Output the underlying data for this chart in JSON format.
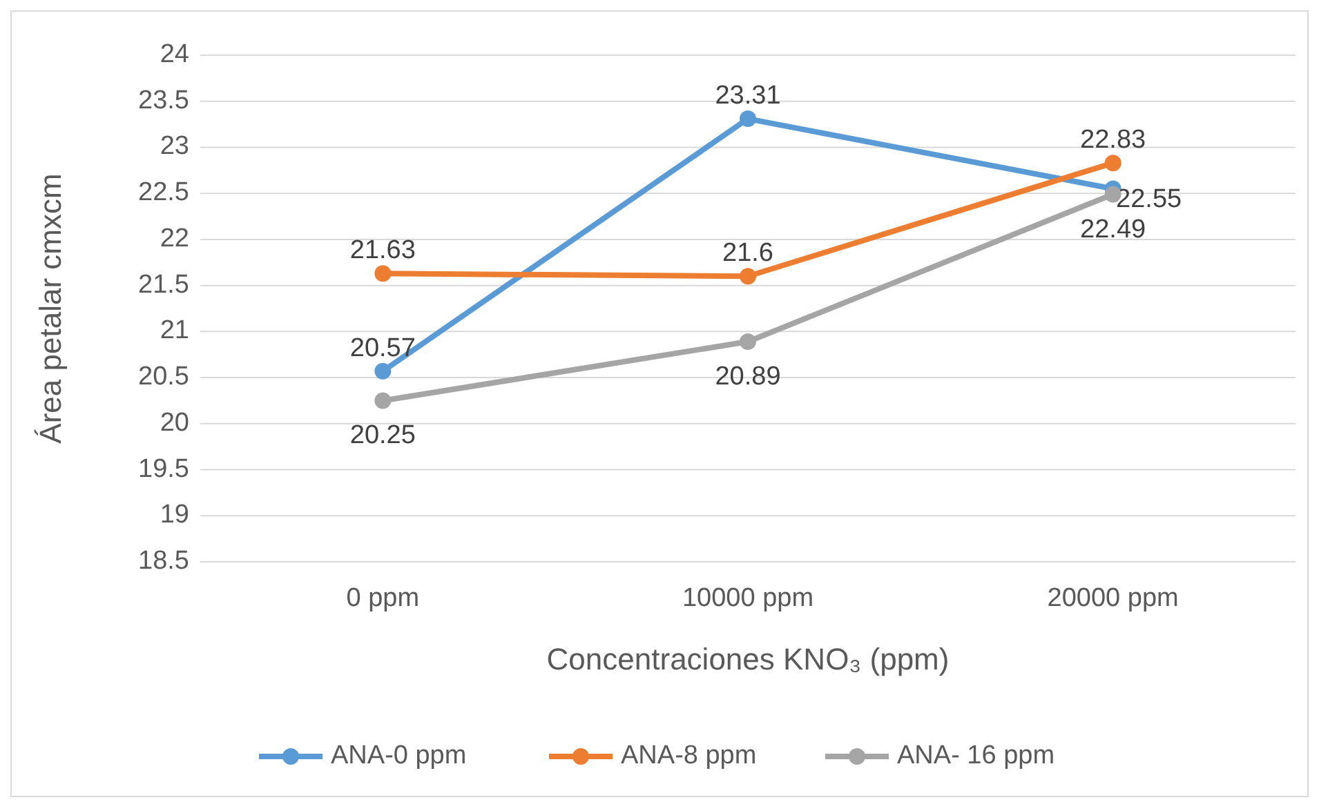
{
  "chart_data": {
    "type": "line",
    "xlabel": "Concentraciones KNO₃ (ppm)",
    "ylabel": "Área petalar cmxcm",
    "categories": [
      "0 ppm",
      "10000 ppm",
      "20000 ppm"
    ],
    "series": [
      {
        "name": "ANA-0 ppm",
        "color": "#5b9bd5",
        "values": [
          20.57,
          23.31,
          22.55
        ]
      },
      {
        "name": "ANA-8 ppm",
        "color": "#ed7d31",
        "values": [
          21.63,
          21.6,
          22.83
        ]
      },
      {
        "name": "ANA- 16 ppm",
        "color": "#a5a5a5",
        "values": [
          20.25,
          20.89,
          22.49
        ]
      }
    ],
    "ylim": [
      18.5,
      24
    ],
    "yticks": [
      18.5,
      19,
      19.5,
      20,
      20.5,
      21,
      21.5,
      22,
      22.5,
      23,
      23.5,
      24
    ],
    "grid": "y",
    "legend": "bottom",
    "marker": "circle",
    "line_style": "solid",
    "data_labels": true
  }
}
